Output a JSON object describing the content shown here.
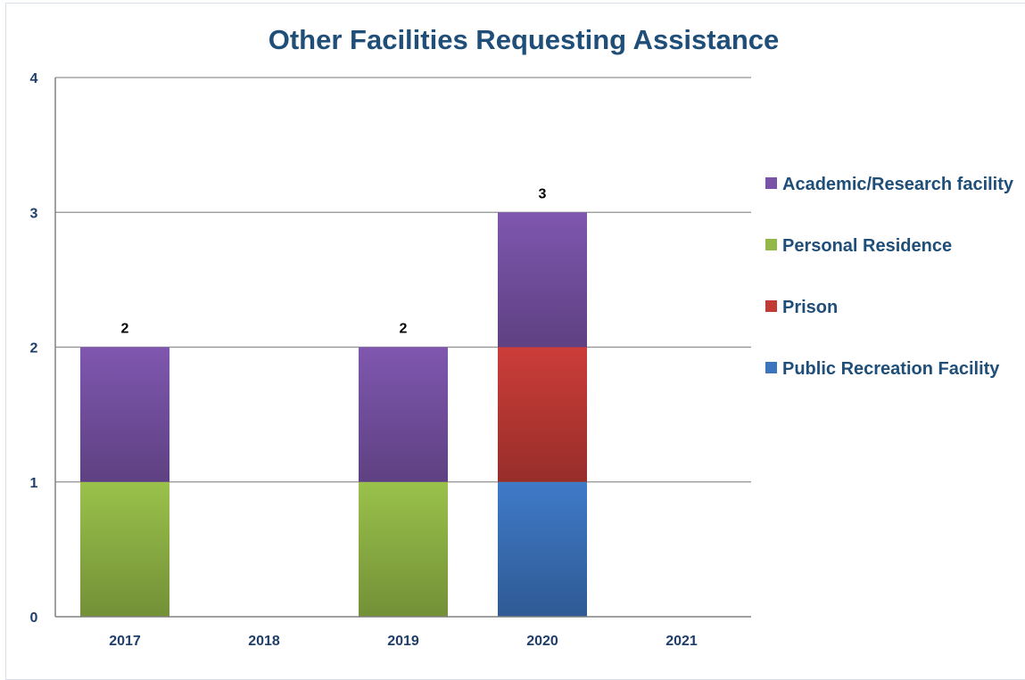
{
  "chart_data": {
    "type": "bar",
    "stacked": true,
    "title": "Other Facilities Requesting Assistance",
    "xlabel": "",
    "ylabel": "",
    "categories": [
      "2017",
      "2018",
      "2019",
      "2020",
      "2021"
    ],
    "ylim": [
      0,
      4
    ],
    "yticks": [
      "0",
      "1",
      "2",
      "3",
      "4"
    ],
    "grid": true,
    "legend_position": "right",
    "series": [
      {
        "name": "Public Recreation Facility",
        "values": [
          0,
          0,
          0,
          1,
          0
        ],
        "color": "#3c74be"
      },
      {
        "name": "Prison",
        "values": [
          0,
          0,
          0,
          1,
          0
        ],
        "color": "#c23a36"
      },
      {
        "name": "Personal Residence",
        "values": [
          1,
          0,
          1,
          0,
          0
        ],
        "color": "#93b847"
      },
      {
        "name": "Academic/Research facility",
        "values": [
          1,
          0,
          1,
          1,
          0
        ],
        "color": "#7953a7"
      }
    ],
    "totals": [
      2,
      0,
      2,
      3,
      0
    ],
    "total_labels": [
      "2",
      "",
      "2",
      "3",
      ""
    ],
    "legend_order": [
      3,
      2,
      1,
      0
    ]
  },
  "colors": {
    "title": "#1f4e79",
    "tick_text": "#1f3e6a",
    "axis": "#808080",
    "gridline": "#909090",
    "data_label": "#000000"
  }
}
